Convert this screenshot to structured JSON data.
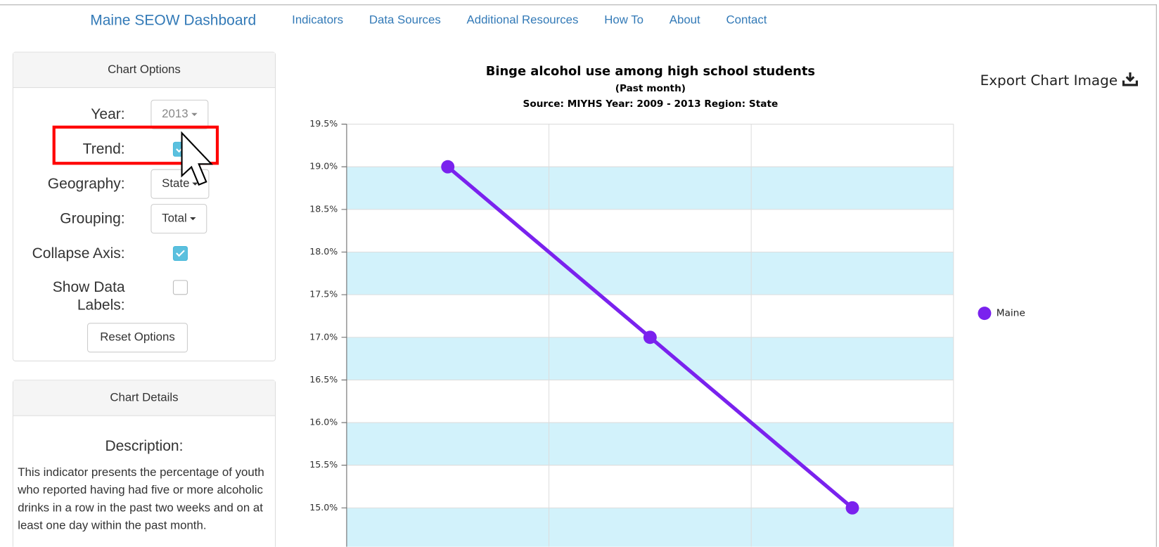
{
  "nav": {
    "brand": "Maine SEOW Dashboard",
    "links": [
      "Indicators",
      "Data Sources",
      "Additional Resources",
      "How To",
      "About",
      "Contact"
    ]
  },
  "options": {
    "title": "Chart Options",
    "fields": [
      {
        "label": "Year:",
        "value": "2013"
      },
      {
        "label": "Trend:",
        "checked": true
      },
      {
        "label": "Geography:",
        "value": "State"
      },
      {
        "label": "Grouping:",
        "value": "Total"
      },
      {
        "label": "Collapse Axis:",
        "checked": true
      },
      {
        "label": "Show Data Labels:",
        "checked": false
      }
    ],
    "reset": "Reset Options"
  },
  "details": {
    "title": "Chart Details",
    "heading": "Description:",
    "text": "This indicator presents the percentage of youth who reported having had five or more alcoholic drinks in a row in the past two weeks and on at least one day within the past month."
  },
  "export": "Export Chart Image",
  "chart_data": {
    "type": "line",
    "title": "Binge alcohol use among high school students",
    "subtitle": "(Past month)",
    "source": "Source: MIYHS Year: 2009 - 2013 Region: State",
    "categories": [
      null,
      null,
      null
    ],
    "series": [
      {
        "name": "Maine",
        "color": "#7a22ee",
        "values": [
          19.0,
          17.0,
          15.0
        ]
      }
    ],
    "ylim": [
      14.5,
      19.5
    ],
    "yticks": [
      {
        "value": 15.0,
        "label": "15.0%"
      },
      {
        "value": 15.5,
        "label": "15.5%"
      },
      {
        "value": 16.0,
        "label": "16.0%"
      },
      {
        "value": 16.5,
        "label": "16.5%"
      },
      {
        "value": 17.0,
        "label": "17.0%"
      },
      {
        "value": 17.5,
        "label": "17.5%"
      },
      {
        "value": 18.0,
        "label": "18.0%"
      },
      {
        "value": 18.5,
        "label": "18.5%"
      },
      {
        "value": 19.0,
        "label": "19.0%"
      },
      {
        "value": 19.5,
        "label": "19.5%"
      }
    ],
    "grid": true,
    "legend": "right"
  }
}
